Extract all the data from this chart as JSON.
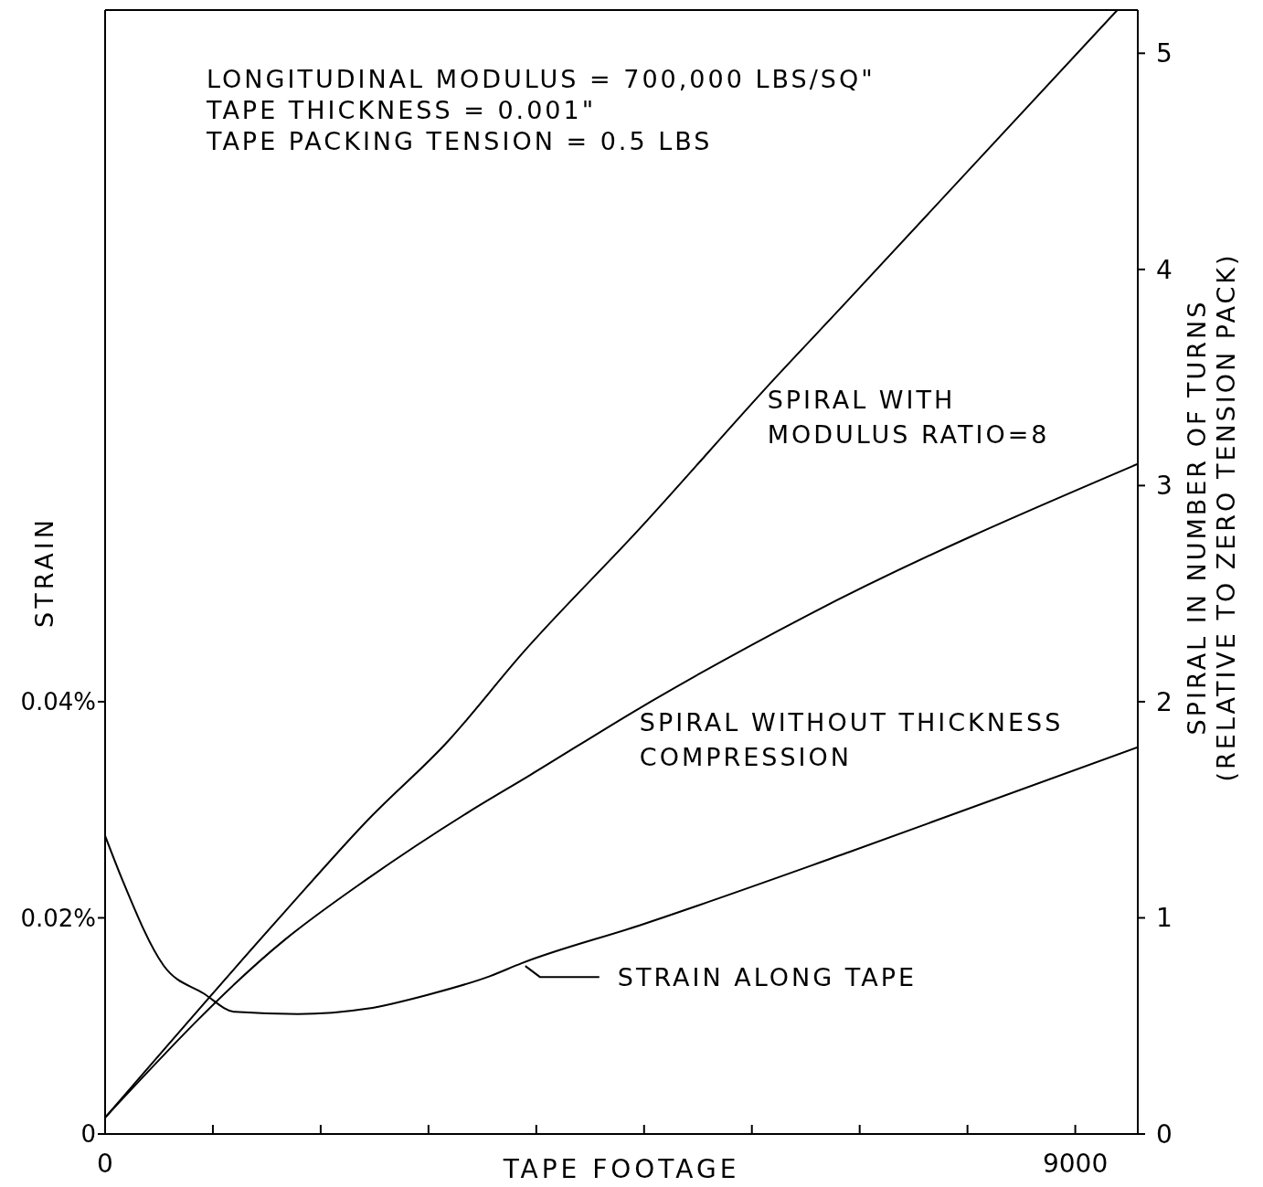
{
  "chart_data": {
    "type": "line",
    "xlabel": "TAPE FOOTAGE",
    "ylabel": "STRAIN",
    "y2label": "SPIRAL IN NUMBER OF TURNS\n(RELATIVE TO ZERO TENSION PACK)",
    "annotations": [
      "LONGITUDINAL MODULUS = 700,000 LBS/SQ\"",
      "TAPE THICKNESS = 0.001\"",
      "TAPE PACKING TENSION = 0.5 LBS"
    ],
    "xlim": [
      0,
      9580
    ],
    "xticks": [
      0,
      {
        "value": 1000,
        "label": null
      },
      {
        "value": 2000,
        "label": null
      },
      {
        "value": 3000,
        "label": null
      },
      {
        "value": 4000,
        "label": null
      },
      {
        "value": 5000,
        "label": null
      },
      {
        "value": 6000,
        "label": null
      },
      {
        "value": 7000,
        "label": null
      },
      {
        "value": 8000,
        "label": null
      },
      9000
    ],
    "ylim": [
      0,
      0.104
    ],
    "yticks": [
      0,
      {
        "value": 0.02,
        "label": "0.02%"
      },
      {
        "value": 0.04,
        "label": "0.04%"
      }
    ],
    "y2lim": [
      0,
      5.2
    ],
    "y2ticks": [
      0,
      1,
      2,
      3,
      4,
      5
    ],
    "grid": false,
    "marker": "none",
    "line_style": "solid",
    "series": [
      {
        "name": "SPIRAL WITH\nMODULUS RATIO=8",
        "color": "#000000",
        "axis": "y2",
        "x": [
          0,
          1670,
          2432,
          3186,
          3864,
          4958,
          6220,
          6822,
          9390
        ],
        "values": [
          0.076,
          1.03,
          1.45,
          1.82,
          2.22,
          2.8,
          3.5,
          3.82,
          5.2
        ]
      },
      {
        "name": "SPIRAL WITHOUT THICKNESS\nCOMPRESSION",
        "color": "#000000",
        "axis": "y2",
        "x": [
          0,
          1670,
          2432,
          3373,
          3941,
          4958,
          6517,
          9580
        ],
        "values": [
          0.076,
          0.9,
          1.18,
          1.49,
          1.66,
          1.97,
          2.4,
          3.1
        ]
      },
      {
        "name": "STRAIN ALONG TAPE",
        "color": "#000000",
        "axis": "y",
        "x": [
          0,
          161,
          542,
          915,
          1203,
          1788,
          2432,
          3000,
          3568,
          3864,
          4958,
          6907,
          9580
        ],
        "values": [
          0.0276,
          0.0235,
          0.0156,
          0.013,
          0.0113,
          0.0111,
          0.0116,
          0.0129,
          0.0146,
          0.0158,
          0.0193,
          0.0261,
          0.0358
        ]
      }
    ]
  }
}
